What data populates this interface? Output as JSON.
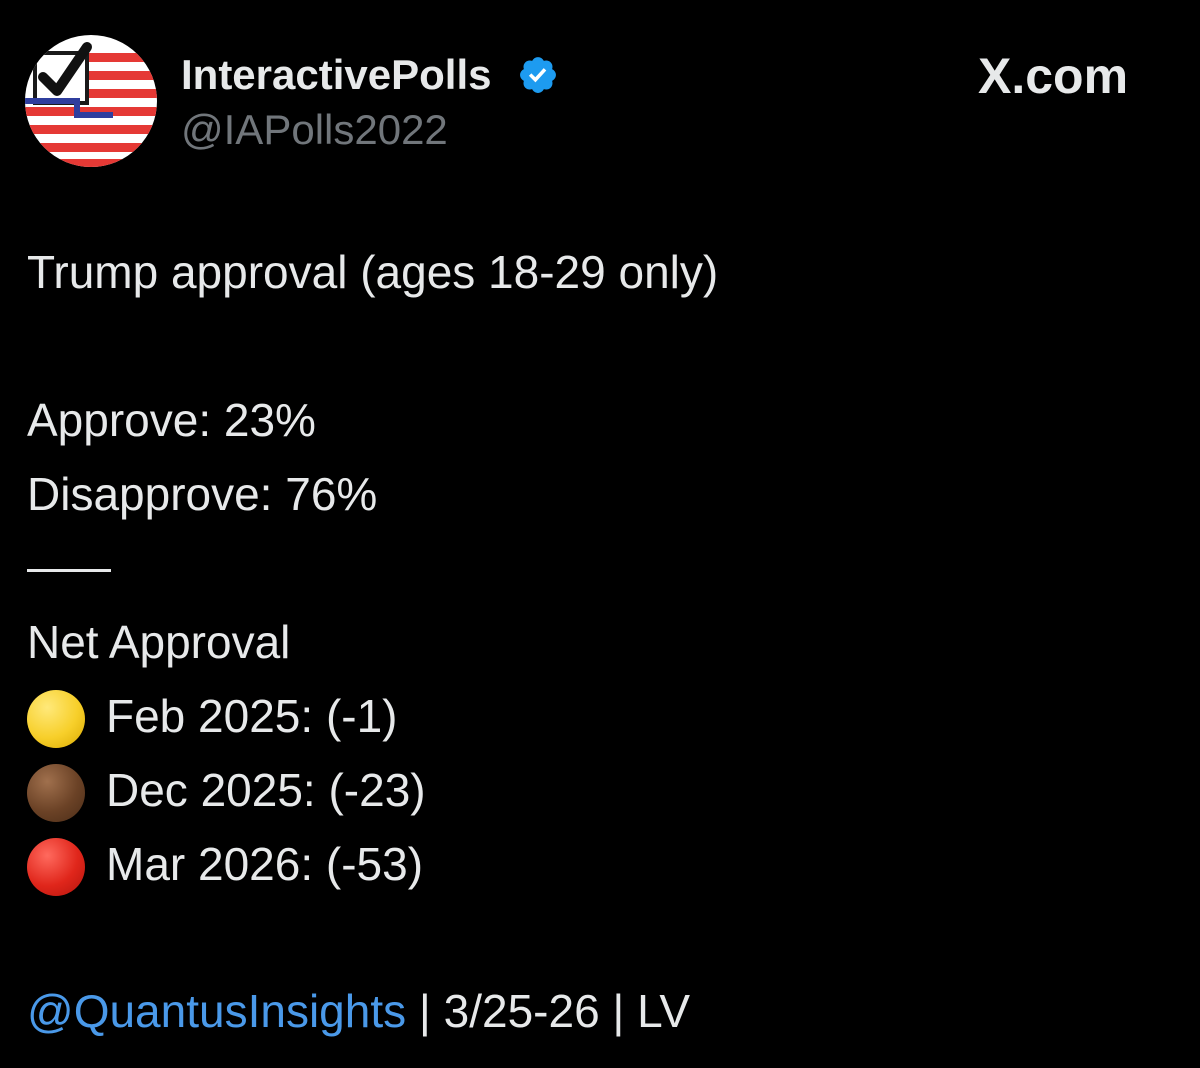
{
  "author": {
    "display_name": "InteractivePolls",
    "handle": "@IAPolls2022",
    "verified": true,
    "avatar_icon": "us-flag-checkmark-avatar"
  },
  "watermark": "X.com",
  "post": {
    "title": "Trump approval (ages 18-29 only)",
    "approve": "Approve: 23%",
    "disapprove": "Disapprove: 76%",
    "net_label": "Net Approval",
    "net_rows": [
      {
        "icon": "yellow-circle",
        "color": "#f7cf2a",
        "text": "Feb 2025: (-1)"
      },
      {
        "icon": "brown-circle",
        "color": "#6b4226",
        "text": "Dec 2025: (-23)"
      },
      {
        "icon": "red-circle",
        "color": "#e0261b",
        "text": "Mar 2026: (-53)"
      }
    ],
    "footer": {
      "mention": "@QuantusInsights",
      "rest": " | 3/25-26 | LV"
    }
  },
  "colors": {
    "background": "#000000",
    "text": "#e7e9ea",
    "secondary_text": "#71767b",
    "link": "#4a99e9",
    "verified_badge": "#1d9bf0"
  }
}
